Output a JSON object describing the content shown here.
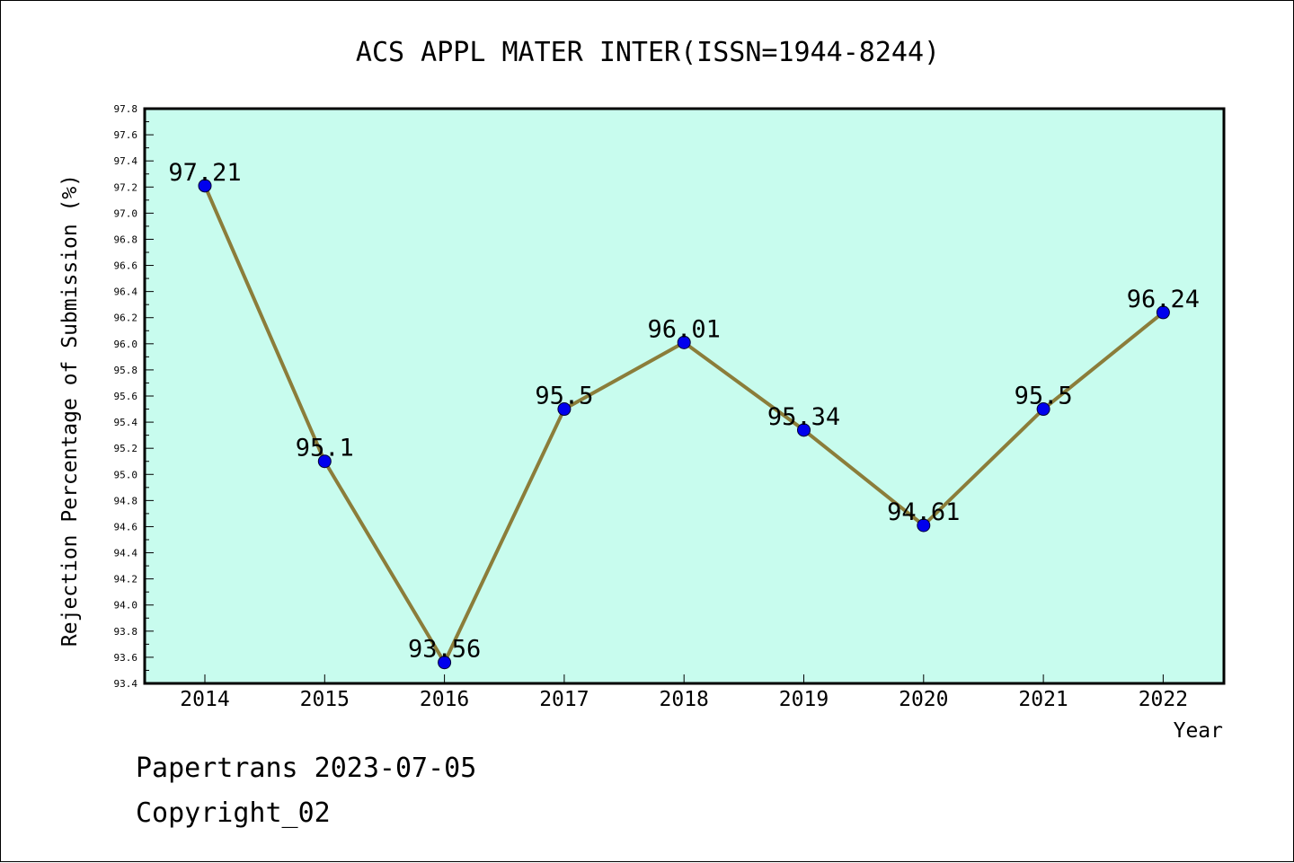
{
  "title": "ACS APPL MATER INTER(ISSN=1944-8244)",
  "footer": {
    "line1": "Papertrans 2023-07-05",
    "line2": "Copyright_02"
  },
  "colors": {
    "plot_background": "#c8fcee",
    "line": "#8b7d3a",
    "marker": "#0000ee",
    "text": "#000000"
  },
  "chart_data": {
    "type": "line",
    "title": "ACS APPL MATER INTER(ISSN=1944-8244)",
    "xlabel": "Year",
    "ylabel": "Rejection Percentage of Submission (%)",
    "categories": [
      "2014",
      "2015",
      "2016",
      "2017",
      "2018",
      "2019",
      "2020",
      "2021",
      "2022"
    ],
    "series": [
      {
        "values": [
          97.21,
          95.1,
          93.56,
          95.5,
          96.01,
          95.34,
          94.61,
          95.5,
          96.24
        ],
        "labels": [
          "97.21",
          "95.1",
          "93.56",
          "95.5",
          "96.01",
          "95.34",
          "94.61",
          "95.5",
          "96.24"
        ]
      }
    ],
    "ylim": [
      93.4,
      97.8
    ],
    "y_ticks": [
      "93.4",
      "93.6",
      "93.8",
      "94.0",
      "94.2",
      "94.4",
      "94.6",
      "94.8",
      "95.0",
      "95.2",
      "95.4",
      "95.6",
      "95.8",
      "96.0",
      "96.2",
      "96.4",
      "96.6",
      "96.8",
      "97.0",
      "97.2",
      "97.4",
      "97.6",
      "97.8"
    ],
    "grid": false,
    "legend": "none"
  }
}
